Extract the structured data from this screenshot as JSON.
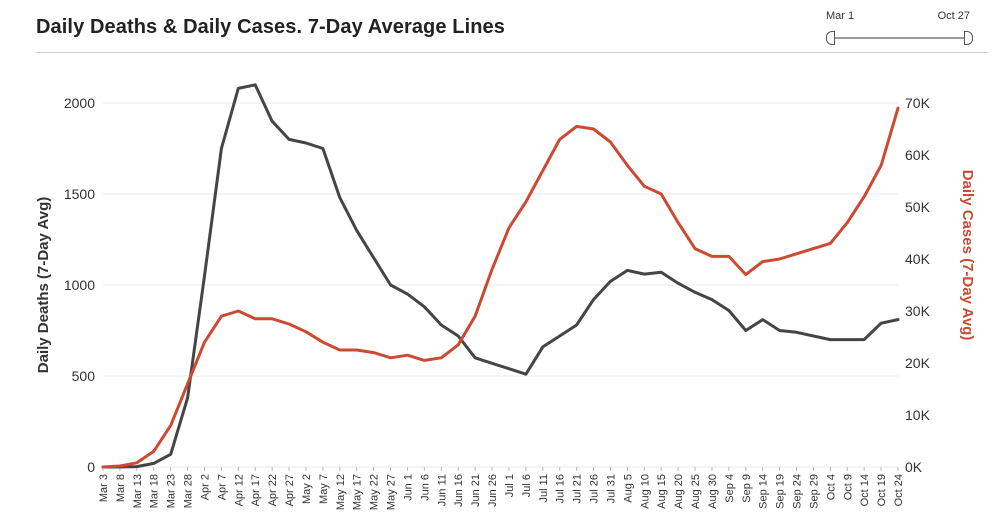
{
  "header": {
    "title": "Daily Deaths & Daily Cases. 7-Day Average Lines"
  },
  "range_selector": {
    "start_label": "Mar 1",
    "end_label": "Oct 27"
  },
  "colors": {
    "deaths": "#454545",
    "cases": "#cc4a31",
    "grid": "#e8e8e8",
    "axis_text": "#333333"
  },
  "chart_data": {
    "type": "line",
    "title": "Daily Deaths & Daily Cases. 7-Day Average Lines",
    "xlabel": "",
    "ylabel_left": "Daily Deaths (7-Day Avg)",
    "ylabel_right": "Daily Cases (7-Day Avg)",
    "ylim_left": [
      0,
      2000
    ],
    "ylim_right": [
      0,
      70000
    ],
    "yticks_left": [
      "0",
      "500",
      "1000",
      "1500",
      "2000"
    ],
    "yticks_right": [
      "0K",
      "10K",
      "20K",
      "30K",
      "40K",
      "50K",
      "60K",
      "70K"
    ],
    "grid": true,
    "categories": [
      "Mar 3",
      "Mar 8",
      "Mar 13",
      "Mar 18",
      "Mar 23",
      "Mar 28",
      "Apr 2",
      "Apr 7",
      "Apr 12",
      "Apr 17",
      "Apr 22",
      "Apr 27",
      "May 2",
      "May 7",
      "May 12",
      "May 17",
      "May 22",
      "May 27",
      "Jun 1",
      "Jun 6",
      "Jun 11",
      "Jun 16",
      "Jun 21",
      "Jun 26",
      "Jul 1",
      "Jul 6",
      "Jul 11",
      "Jul 16",
      "Jul 21",
      "Jul 26",
      "Jul 31",
      "Aug 5",
      "Aug 10",
      "Aug 15",
      "Aug 20",
      "Aug 25",
      "Aug 30",
      "Sep 4",
      "Sep 9",
      "Sep 14",
      "Sep 19",
      "Sep 24",
      "Sep 29",
      "Oct 4",
      "Oct 9",
      "Oct 14",
      "Oct 19",
      "Oct 24"
    ],
    "series": [
      {
        "name": "Daily Deaths",
        "axis": "left",
        "values": [
          0,
          0,
          2,
          20,
          70,
          380,
          1050,
          1750,
          2080,
          2100,
          1900,
          1800,
          1780,
          1750,
          1480,
          1300,
          1150,
          1000,
          950,
          880,
          780,
          720,
          600,
          570,
          540,
          510,
          660,
          720,
          780,
          920,
          1020,
          1080,
          1060,
          1070,
          1010,
          960,
          920,
          860,
          750,
          810,
          750,
          740,
          720,
          700,
          700,
          700,
          790,
          810
        ]
      },
      {
        "name": "Daily Cases",
        "axis": "right",
        "values": [
          0,
          200,
          800,
          3000,
          8000,
          16000,
          24000,
          29000,
          30000,
          28500,
          28500,
          27500,
          26000,
          24000,
          22500,
          22500,
          22000,
          21000,
          21500,
          20500,
          21000,
          23500,
          29000,
          38000,
          46000,
          51000,
          57000,
          63000,
          65500,
          65000,
          62500,
          58000,
          54000,
          52500,
          47000,
          42000,
          40500,
          40500,
          37000,
          39500,
          40000,
          41000,
          42000,
          43000,
          47000,
          52000,
          58000,
          69000
        ]
      }
    ]
  }
}
